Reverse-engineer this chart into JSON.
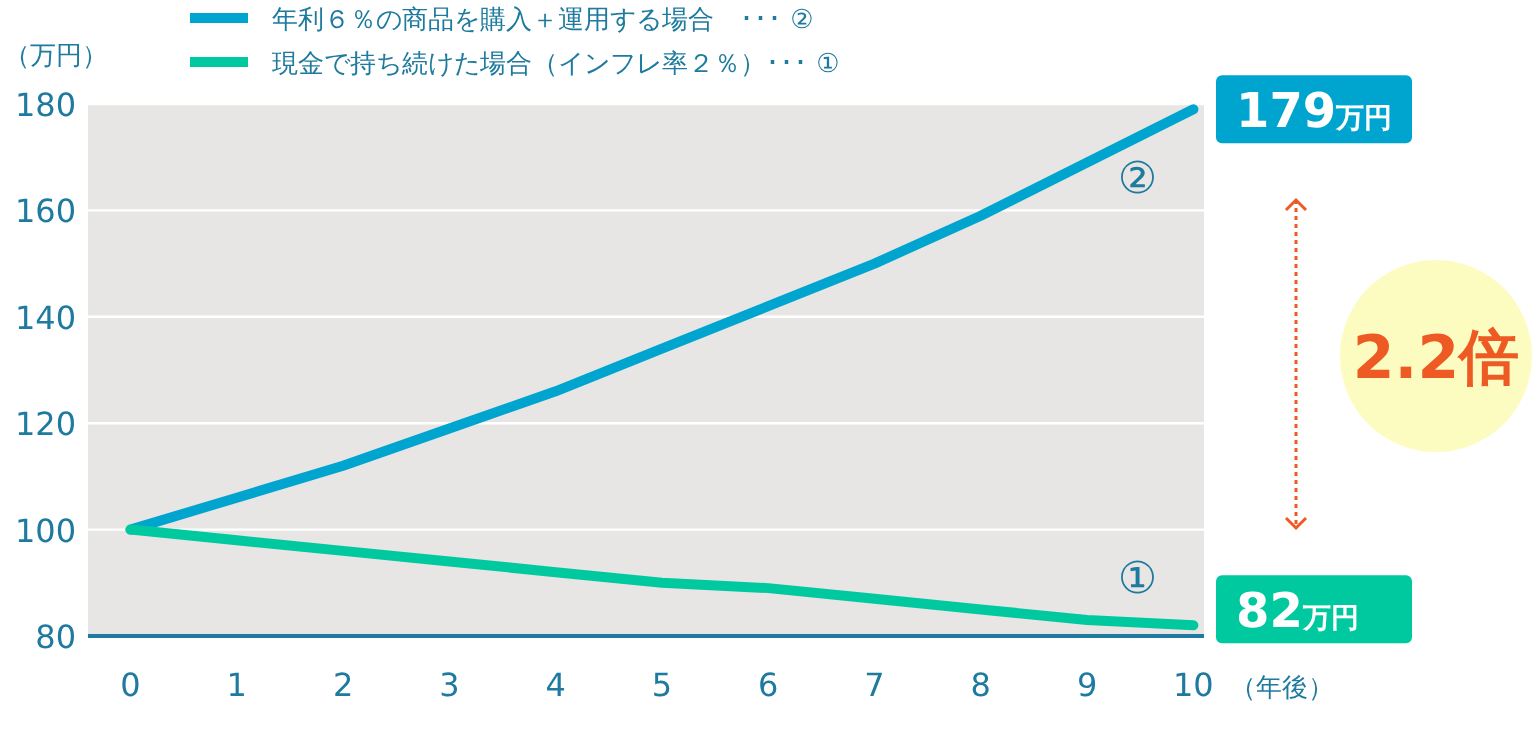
{
  "chart_data": {
    "type": "line",
    "xlabel": "（年後）",
    "ylabel": "（万円）",
    "x": [
      0,
      1,
      2,
      3,
      4,
      5,
      6,
      7,
      8,
      9,
      10
    ],
    "series": [
      {
        "name": "年利６％の商品を購入＋運用する場合　･･･ ②",
        "color": "#00a5cf",
        "values": [
          100,
          106,
          112,
          119,
          126,
          134,
          142,
          150,
          159,
          169,
          179
        ],
        "value_labels": [
          null,
          null,
          null,
          null,
          null,
          null,
          null,
          null,
          null,
          null,
          "179万円"
        ]
      },
      {
        "name": "現金で持ち続けた場合（インフレ率２％）･･･ ①",
        "color": "#00c9a0",
        "values": [
          100,
          98,
          96,
          94,
          92,
          90,
          89,
          87,
          85,
          83,
          82
        ],
        "value_labels": [
          null,
          null,
          null,
          null,
          null,
          null,
          null,
          null,
          null,
          null,
          "82万円"
        ]
      }
    ],
    "xlim": [
      -0.4,
      10.1
    ],
    "xticks": [
      0,
      1,
      2,
      3,
      4,
      5,
      6,
      7,
      8,
      9,
      10
    ],
    "ylim": [
      80,
      180
    ],
    "yticks": [
      80,
      100,
      120,
      140,
      160,
      180
    ],
    "grid": "y",
    "legend": "top left",
    "marker": "none",
    "line_style": "solid",
    "annotations": [
      "②",
      "①",
      "2.2倍"
    ]
  }
}
